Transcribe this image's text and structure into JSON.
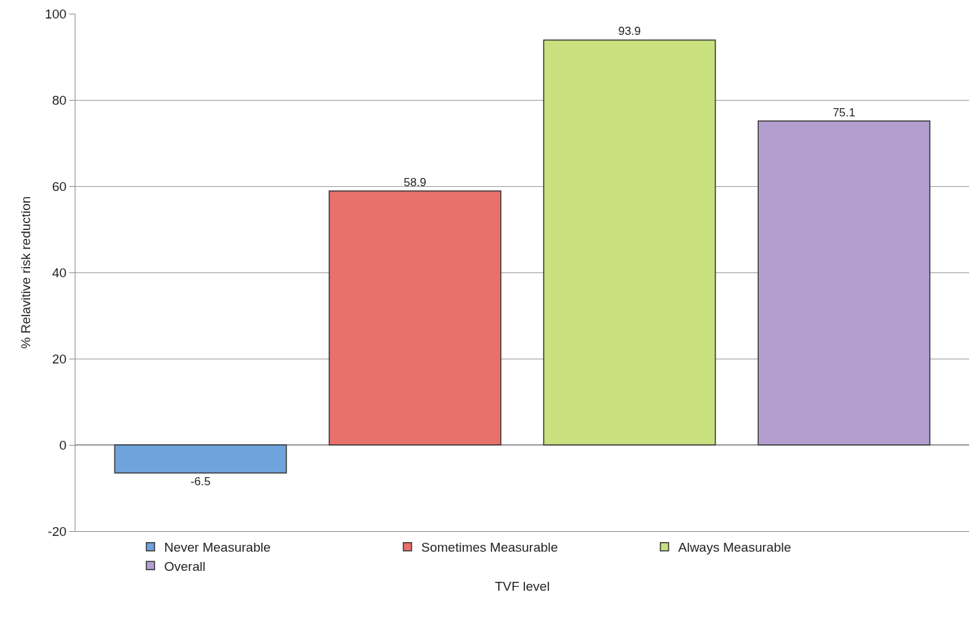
{
  "chart_data": {
    "type": "bar",
    "xlabel": "TVF level",
    "ylabel": "% Relavitive risk reduction",
    "categories": [
      null
    ],
    "series": [
      {
        "name": "Never Measurable",
        "color": "#6fa3dc",
        "values": [
          -6.5
        ]
      },
      {
        "name": "Sometimes Measurable",
        "color": "#e8716b",
        "values": [
          58.9
        ]
      },
      {
        "name": "Always Measurable",
        "color": "#c8e07e",
        "values": [
          93.9
        ]
      },
      {
        "name": "Overall",
        "color": "#b39fcf",
        "values": [
          75.1
        ]
      }
    ],
    "ylim": [
      -20,
      100
    ],
    "yticks": [
      -20,
      0,
      20,
      40,
      60,
      80,
      100
    ],
    "grid": "y",
    "legend": "bottom",
    "data_labels": true
  }
}
